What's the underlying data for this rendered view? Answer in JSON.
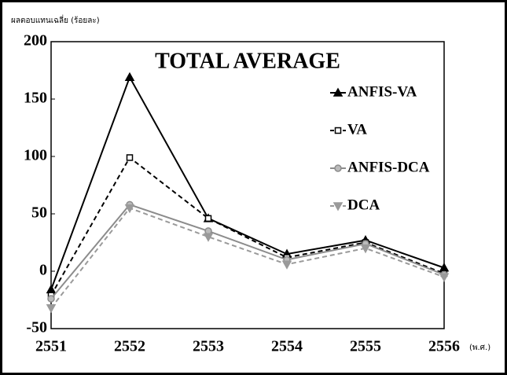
{
  "chart_data": {
    "type": "line",
    "title": "TOTAL AVERAGE",
    "y_label": "ผลตอบแทนเฉลี่ย (ร้อยละ)",
    "x_unit": "(พ.ศ.)",
    "categories": [
      "2551",
      "2552",
      "2553",
      "2554",
      "2555",
      "2556"
    ],
    "series": [
      {
        "name": "ANFIS-VA",
        "color": "#000000",
        "dashed": false,
        "marker": "triangle-up",
        "values": [
          -16,
          169,
          46,
          15,
          27,
          3
        ]
      },
      {
        "name": "VA",
        "color": "#000000",
        "dashed": true,
        "marker": "square",
        "values": [
          -21,
          99,
          46,
          12,
          25,
          -2
        ]
      },
      {
        "name": "ANFIS-DCA",
        "color": "#8c8c8c",
        "dashed": false,
        "marker": "circle",
        "values": [
          -24,
          58,
          35,
          10,
          24,
          -3
        ]
      },
      {
        "name": "DCA",
        "color": "#9a9a9a",
        "dashed": true,
        "marker": "triangle-down",
        "values": [
          -32,
          55,
          30,
          6,
          20,
          -5
        ]
      }
    ],
    "ylim": [
      -50,
      200
    ],
    "yticks": [
      -50,
      0,
      50,
      100,
      150,
      200
    ],
    "grid": false
  }
}
